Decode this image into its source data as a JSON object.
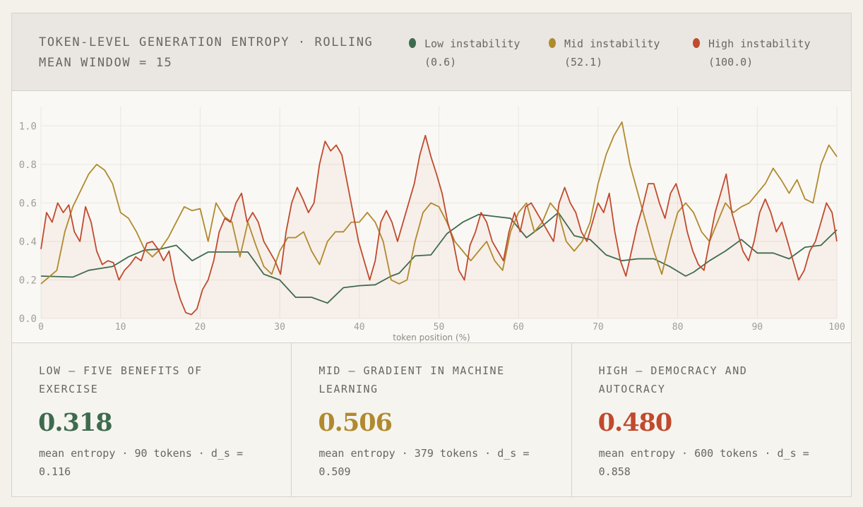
{
  "header": {
    "title": "TOKEN-LEVEL GENERATION ENTROPY · ROLLING MEAN WINDOW = 15"
  },
  "legend": [
    {
      "label": "Low instability",
      "value": "(0.6)",
      "color": "#3e6b4e"
    },
    {
      "label": "Mid instability",
      "value": "(52.1)",
      "color": "#b08a2e"
    },
    {
      "label": "High instability",
      "value": "(100.0)",
      "color": "#c04a2e"
    }
  ],
  "chart_data": {
    "type": "line",
    "title": "TOKEN-LEVEL GENERATION ENTROPY · ROLLING MEAN WINDOW = 15",
    "xlabel": "token position (%)",
    "ylabel": "",
    "xlim": [
      0,
      100
    ],
    "ylim": [
      0,
      1.1
    ],
    "xticks": [
      0,
      10,
      20,
      30,
      40,
      50,
      60,
      70,
      80,
      90,
      100
    ],
    "yticks": [
      0.0,
      0.2,
      0.4,
      0.6,
      0.8,
      1.0
    ],
    "ytick_labels": [
      "0.0",
      "0.2",
      "0.4",
      "0.6",
      "0.8",
      "1.0"
    ],
    "grid": true,
    "series": [
      {
        "name": "Low instability",
        "color": "#3e6b4e",
        "x": [
          0,
          4,
          6,
          9,
          11,
          13,
          15,
          17,
          19,
          21,
          23,
          26,
          28,
          30,
          32,
          34,
          36,
          38,
          40,
          42,
          44,
          45,
          47,
          49,
          51,
          53,
          55,
          57,
          59,
          61,
          63,
          65,
          67,
          69,
          71,
          73,
          75,
          77,
          79,
          81,
          82,
          84,
          86,
          88,
          90,
          92,
          94,
          96,
          98,
          100
        ],
        "y": [
          0.22,
          0.215,
          0.25,
          0.27,
          0.32,
          0.355,
          0.36,
          0.38,
          0.3,
          0.345,
          0.345,
          0.345,
          0.23,
          0.2,
          0.11,
          0.11,
          0.08,
          0.16,
          0.17,
          0.175,
          0.22,
          0.235,
          0.325,
          0.33,
          0.44,
          0.5,
          0.54,
          0.53,
          0.52,
          0.42,
          0.48,
          0.55,
          0.43,
          0.41,
          0.33,
          0.3,
          0.31,
          0.31,
          0.27,
          0.22,
          0.24,
          0.3,
          0.35,
          0.41,
          0.34,
          0.34,
          0.31,
          0.37,
          0.38,
          0.46
        ]
      },
      {
        "name": "Mid instability",
        "color": "#b08a2e",
        "x": [
          0,
          2,
          3,
          4,
          6,
          7,
          8,
          9,
          10,
          11,
          12,
          13,
          14,
          15,
          16,
          17,
          18,
          19,
          20,
          21,
          22,
          23,
          24,
          25,
          26,
          27,
          28,
          29,
          30,
          31,
          32,
          33,
          34,
          35,
          36,
          37,
          38,
          39,
          40,
          41,
          42,
          43,
          44,
          45,
          46,
          47,
          48,
          49,
          50,
          51,
          52,
          53,
          54,
          55,
          56,
          57,
          58,
          59,
          60,
          61,
          62,
          63,
          64,
          65,
          66,
          67,
          68,
          69,
          70,
          71,
          72,
          73,
          74,
          75,
          76,
          77,
          78,
          79,
          80,
          81,
          82,
          83,
          84,
          85,
          86,
          87,
          88,
          89,
          90,
          91,
          92,
          93,
          94,
          95,
          96,
          97,
          98,
          99,
          100
        ],
        "y": [
          0.18,
          0.25,
          0.45,
          0.58,
          0.75,
          0.8,
          0.77,
          0.7,
          0.55,
          0.52,
          0.45,
          0.36,
          0.32,
          0.36,
          0.42,
          0.5,
          0.58,
          0.56,
          0.57,
          0.4,
          0.6,
          0.53,
          0.5,
          0.32,
          0.5,
          0.38,
          0.27,
          0.23,
          0.35,
          0.42,
          0.42,
          0.45,
          0.35,
          0.28,
          0.4,
          0.45,
          0.45,
          0.5,
          0.5,
          0.55,
          0.5,
          0.4,
          0.2,
          0.18,
          0.2,
          0.4,
          0.55,
          0.6,
          0.58,
          0.5,
          0.4,
          0.35,
          0.3,
          0.35,
          0.4,
          0.3,
          0.25,
          0.45,
          0.55,
          0.6,
          0.45,
          0.5,
          0.6,
          0.55,
          0.4,
          0.35,
          0.4,
          0.5,
          0.7,
          0.85,
          0.95,
          1.02,
          0.8,
          0.65,
          0.5,
          0.35,
          0.23,
          0.4,
          0.55,
          0.6,
          0.55,
          0.45,
          0.4,
          0.5,
          0.6,
          0.55,
          0.58,
          0.6,
          0.65,
          0.7,
          0.78,
          0.72,
          0.65,
          0.72,
          0.62,
          0.6,
          0.8,
          0.9,
          0.84
        ]
      },
      {
        "name": "High instability",
        "color": "#c04a2e",
        "x": [
          0,
          0.7,
          1.4,
          2.1,
          2.8,
          3.5,
          4.2,
          4.9,
          5.6,
          6.3,
          7,
          7.7,
          8.4,
          9.1,
          9.8,
          10.5,
          11.2,
          11.9,
          12.6,
          13.3,
          14,
          14.7,
          15.4,
          16.1,
          16.8,
          17.5,
          18.2,
          18.9,
          19.6,
          20.3,
          21,
          21.7,
          22.4,
          23.1,
          23.8,
          24.5,
          25.2,
          25.9,
          26.6,
          27.3,
          28,
          28.7,
          29.4,
          30.1,
          30.8,
          31.5,
          32.2,
          32.9,
          33.6,
          34.3,
          35,
          35.7,
          36.4,
          37.1,
          37.8,
          38.5,
          39.2,
          39.9,
          40.6,
          41.3,
          42,
          42.7,
          43.4,
          44.1,
          44.8,
          45.5,
          46.2,
          46.9,
          47.6,
          48.3,
          49,
          49.7,
          50.4,
          51.1,
          51.8,
          52.5,
          53.2,
          53.9,
          54.6,
          55.3,
          56,
          56.7,
          57.4,
          58.1,
          58.8,
          59.5,
          60.2,
          60.9,
          61.6,
          62.3,
          63,
          63.7,
          64.4,
          65.1,
          65.8,
          66.5,
          67.2,
          67.9,
          68.6,
          69.3,
          70,
          70.7,
          71.4,
          72.1,
          72.8,
          73.5,
          74.2,
          74.9,
          75.6,
          76.3,
          77,
          77.7,
          78.4,
          79.1,
          79.8,
          80.5,
          81.2,
          81.9,
          82.6,
          83.3,
          84,
          84.7,
          85.4,
          86.1,
          86.8,
          87.5,
          88.2,
          88.9,
          89.6,
          90.3,
          91,
          91.7,
          92.4,
          93.1,
          93.8,
          94.5,
          95.2,
          95.9,
          96.6,
          97.3,
          98,
          98.7,
          99.4,
          100
        ],
        "y": [
          0.36,
          0.55,
          0.5,
          0.6,
          0.55,
          0.59,
          0.45,
          0.4,
          0.58,
          0.5,
          0.35,
          0.28,
          0.3,
          0.29,
          0.2,
          0.25,
          0.28,
          0.32,
          0.3,
          0.39,
          0.4,
          0.36,
          0.3,
          0.35,
          0.2,
          0.1,
          0.03,
          0.02,
          0.05,
          0.15,
          0.2,
          0.3,
          0.45,
          0.52,
          0.5,
          0.6,
          0.65,
          0.5,
          0.55,
          0.5,
          0.4,
          0.35,
          0.3,
          0.23,
          0.45,
          0.6,
          0.68,
          0.62,
          0.55,
          0.6,
          0.8,
          0.92,
          0.87,
          0.9,
          0.85,
          0.7,
          0.55,
          0.4,
          0.3,
          0.2,
          0.3,
          0.5,
          0.56,
          0.5,
          0.4,
          0.5,
          0.6,
          0.7,
          0.85,
          0.95,
          0.84,
          0.75,
          0.65,
          0.5,
          0.4,
          0.25,
          0.2,
          0.38,
          0.45,
          0.55,
          0.5,
          0.4,
          0.35,
          0.3,
          0.45,
          0.55,
          0.45,
          0.58,
          0.6,
          0.55,
          0.5,
          0.45,
          0.4,
          0.6,
          0.68,
          0.6,
          0.55,
          0.45,
          0.4,
          0.5,
          0.6,
          0.55,
          0.65,
          0.45,
          0.3,
          0.22,
          0.35,
          0.48,
          0.58,
          0.7,
          0.7,
          0.6,
          0.52,
          0.65,
          0.7,
          0.6,
          0.45,
          0.35,
          0.28,
          0.25,
          0.4,
          0.55,
          0.65,
          0.75,
          0.55,
          0.45,
          0.35,
          0.3,
          0.4,
          0.55,
          0.62,
          0.55,
          0.45,
          0.5,
          0.4,
          0.3,
          0.2,
          0.25,
          0.35,
          0.4,
          0.5,
          0.6,
          0.55,
          0.4
        ]
      }
    ]
  },
  "cards": [
    {
      "title": "LOW — FIVE BENEFITS OF EXERCISE",
      "value": "0.318",
      "desc": "mean entropy · 90 tokens · d_s = 0.116",
      "color": "#3e6b4e"
    },
    {
      "title": "MID — GRADIENT IN MACHINE LEARNING",
      "value": "0.506",
      "desc": "mean entropy · 379 tokens · d_s = 0.509",
      "color": "#b08a2e"
    },
    {
      "title": "HIGH — DEMOCRACY AND AUTOCRACY",
      "value": "0.480",
      "desc": "mean entropy · 600 tokens · d_s = 0.858",
      "color": "#c04a2e"
    }
  ]
}
